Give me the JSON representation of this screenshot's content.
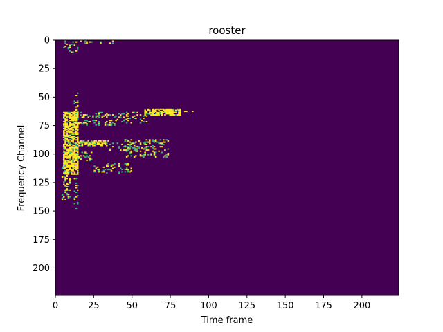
{
  "chart_data": {
    "type": "heatmap",
    "title": "rooster",
    "xlabel": "Time frame",
    "ylabel": "Frequency Channel",
    "xlim": [
      0,
      224
    ],
    "ylim": [
      224,
      0
    ],
    "x_ticks": [
      "0",
      "25",
      "50",
      "75",
      "100",
      "125",
      "150",
      "175",
      "200"
    ],
    "y_ticks": [
      "0",
      "25",
      "50",
      "75",
      "100",
      "125",
      "150",
      "175",
      "200"
    ],
    "colormap": "viridis (binary)",
    "colors": {
      "background": "#440154",
      "active": "#fde725",
      "mid": "#35b779"
    },
    "active_regions": [
      {
        "t": [
          5,
          15
        ],
        "f": [
          0,
          12
        ],
        "level": "sparse"
      },
      {
        "t": [
          15,
          40
        ],
        "f": [
          0,
          3
        ],
        "level": "sparse"
      },
      {
        "t": [
          12,
          15
        ],
        "f": [
          46,
          150
        ],
        "level": "sparse"
      },
      {
        "t": [
          5,
          15
        ],
        "f": [
          63,
          118
        ],
        "level": "dense"
      },
      {
        "t": [
          15,
          60
        ],
        "f": [
          63,
          68
        ],
        "level": "sparse"
      },
      {
        "t": [
          58,
          82
        ],
        "f": [
          60,
          66
        ],
        "level": "dense"
      },
      {
        "t": [
          70,
          92
        ],
        "f": [
          61,
          63
        ],
        "level": "sparse"
      },
      {
        "t": [
          15,
          40
        ],
        "f": [
          70,
          75
        ],
        "level": "sparse"
      },
      {
        "t": [
          40,
          60
        ],
        "f": [
          68,
          73
        ],
        "level": "sparse"
      },
      {
        "t": [
          15,
          35
        ],
        "f": [
          88,
          93
        ],
        "level": "dense"
      },
      {
        "t": [
          35,
          60
        ],
        "f": [
          90,
          97
        ],
        "level": "sparse"
      },
      {
        "t": [
          45,
          74
        ],
        "f": [
          87,
          103
        ],
        "level": "sparse"
      },
      {
        "t": [
          15,
          25
        ],
        "f": [
          98,
          106
        ],
        "level": "sparse"
      },
      {
        "t": [
          25,
          50
        ],
        "f": [
          108,
          117
        ],
        "level": "sparse"
      },
      {
        "t": [
          4,
          10
        ],
        "f": [
          110,
          140
        ],
        "level": "sparse"
      }
    ]
  }
}
